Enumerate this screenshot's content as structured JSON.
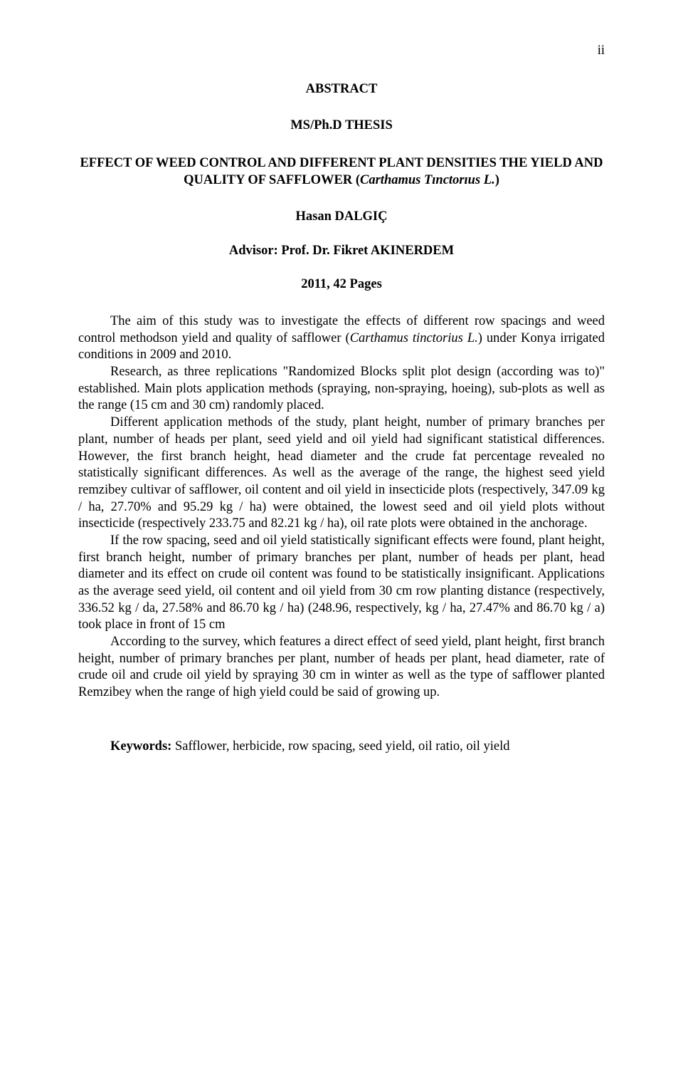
{
  "page_number": "ii",
  "heading": "ABSTRACT",
  "subheading": "MS/Ph.D THESIS",
  "title_line1": "EFFECT OF WEED CONTROL AND DIFFERENT PLANT DENSITIES THE YIELD AND QUALITY OF SAFFLOWER (",
  "title_species": "Carthamus Tınctorıus L.",
  "title_line2": ")",
  "author": "Hasan DALGIÇ",
  "advisor": "Advisor: Prof. Dr. Fikret AKINERDEM",
  "pages": "2011, 42 Pages",
  "para1_a": "The aim of this study was to investigate the effects of different row spacings and weed control methodson yield and quality of safflower (",
  "para1_species": "Carthamus tinctorius L.",
  "para1_b": ") under Konya irrigated conditions in 2009 and 2010.",
  "para2": "Research, as three replications \"Randomized Blocks split plot design (according was to)\" established. Main plots application methods (spraying, non-spraying, hoeing), sub-plots as well as the range (15 cm and 30 cm) randomly placed.",
  "para3": "Different application methods of the study, plant height, number of primary branches per plant, number of heads per plant, seed yield and oil yield had significant statistical differences. However, the first branch height, head diameter and the crude fat percentage revealed no statistically significant differences. As well as the average of the range, the highest seed yield remzibey cultivar of safflower, oil content and oil yield in insecticide plots (respectively, 347.09 kg / ha, 27.70% and 95.29 kg / ha) were obtained, the lowest seed and oil yield plots without insecticide (respectively 233.75 and 82.21 kg / ha), oil rate plots were obtained in the anchorage.",
  "para4": "If the row spacing, seed and oil yield statistically significant effects were found, plant height, first branch height, number of primary branches per plant, number of heads per plant, head diameter and its effect on crude oil content was found to be statistically insignificant. Applications as the average seed yield, oil content and oil yield from 30 cm row planting distance (respectively, 336.52 kg / da, 27.58% and 86.70 kg / ha) (248.96, respectively, kg / ha, 27.47% and 86.70 kg / a) took place in front of 15 cm",
  "para5": "According to the survey, which features a direct effect of seed yield, plant height, first branch height, number of primary branches per plant, number of heads per plant, head diameter, rate of crude oil and crude oil yield by spraying 30 cm in winter as well as the type of safflower planted Remzibey when the range of high yield could be said of growing up.",
  "keywords_label": "Keywords:",
  "keywords_text": " Safflower, herbicide, row spacing, seed yield, oil ratio, oil yield",
  "colors": {
    "text": "#000000",
    "background": "#ffffff"
  },
  "typography": {
    "family": "Times New Roman",
    "body_size_pt": 13,
    "line_height": 1.28
  }
}
